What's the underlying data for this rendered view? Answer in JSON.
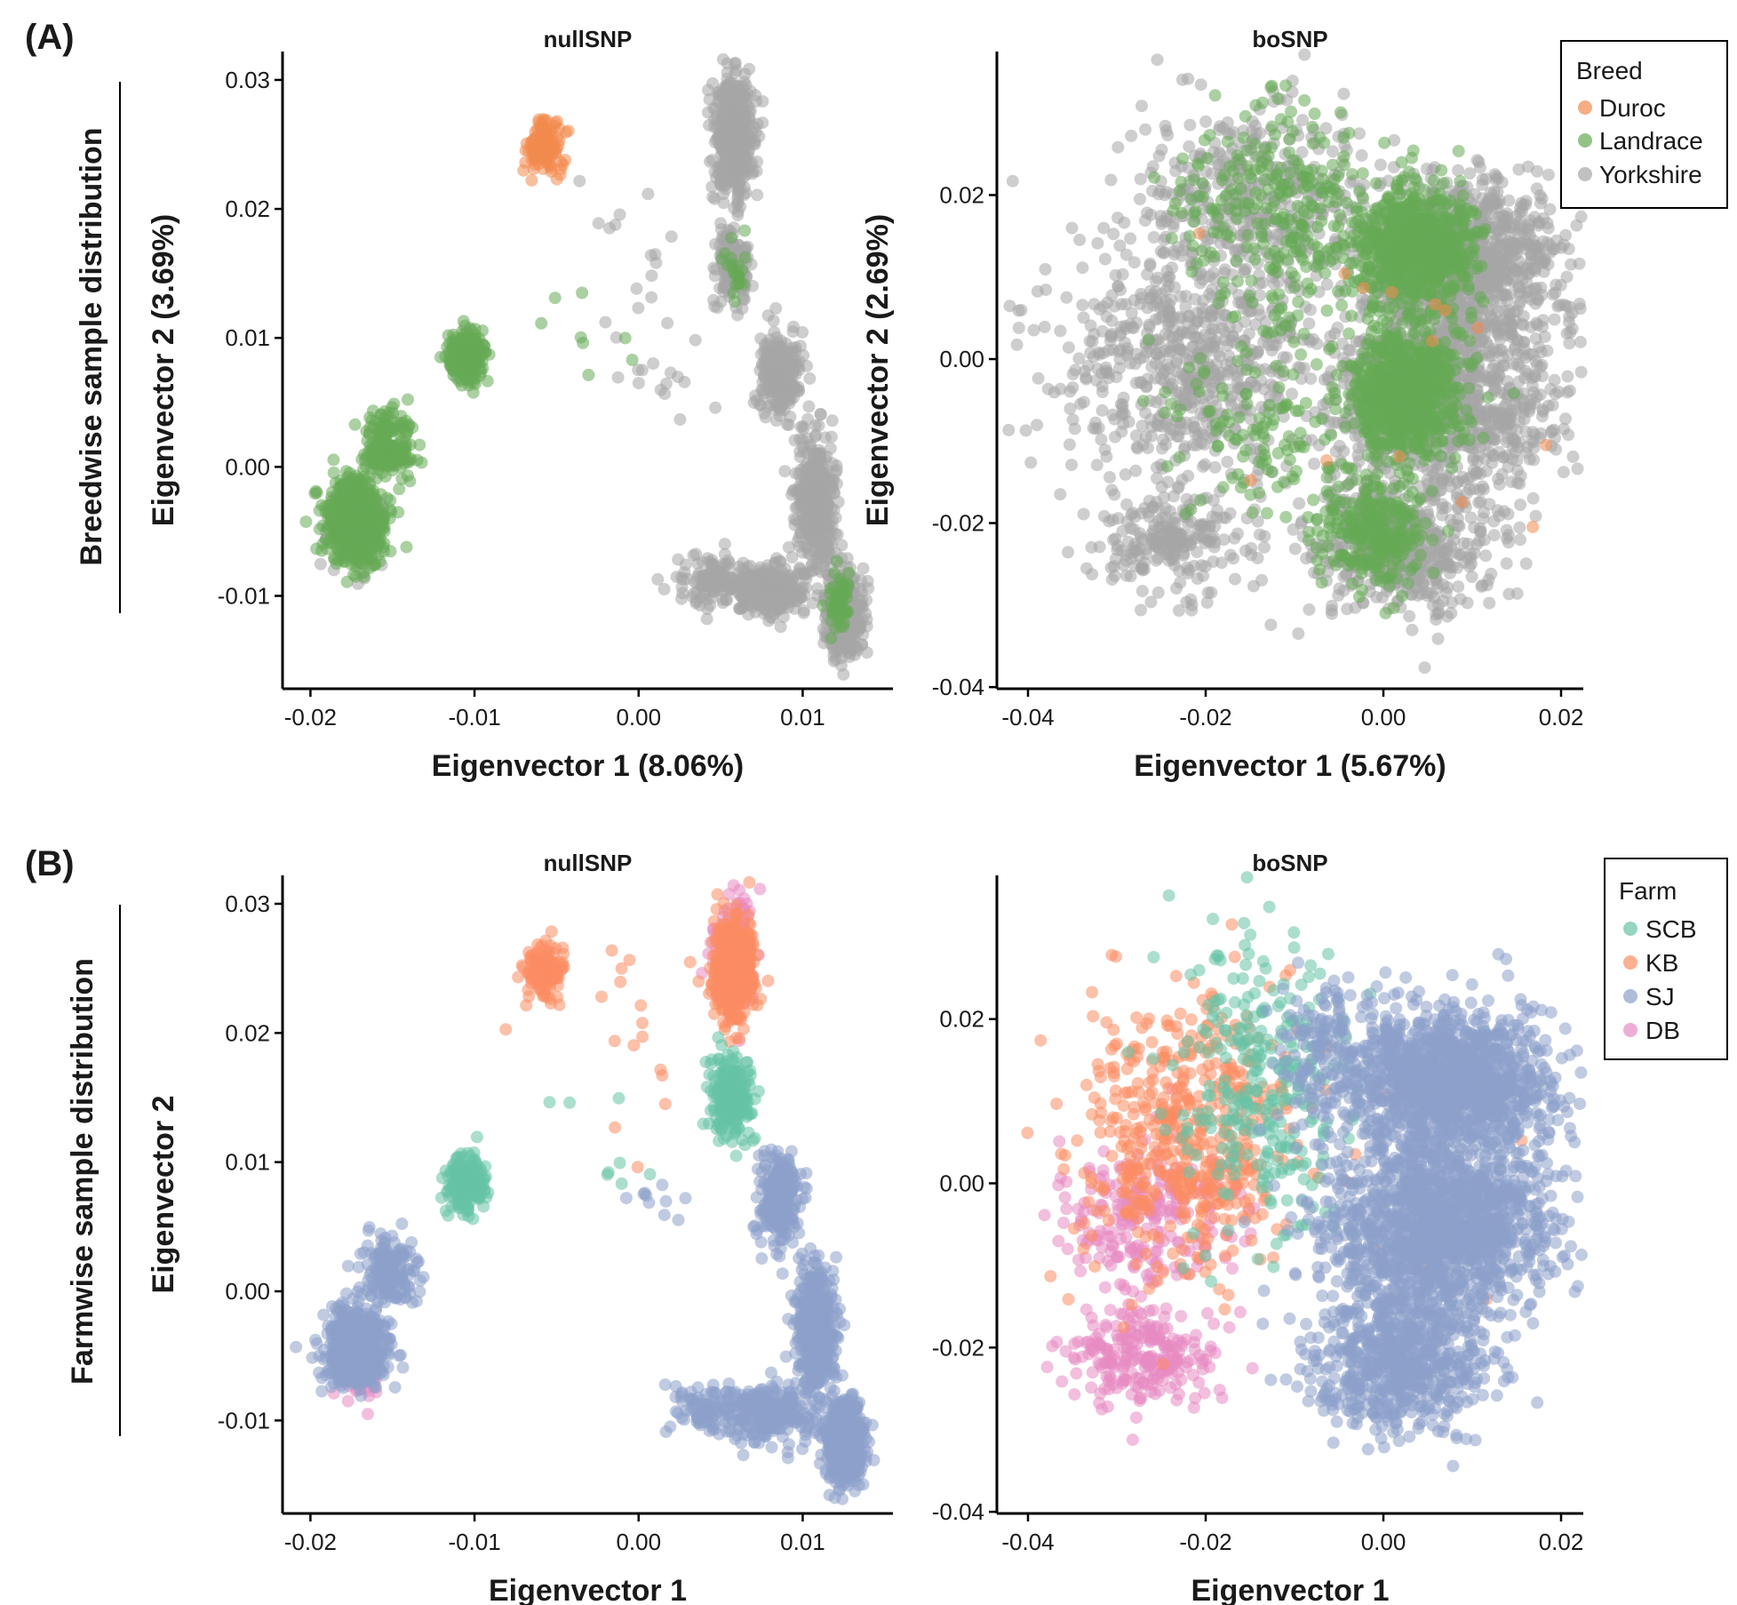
{
  "figure": {
    "panels": [
      {
        "letter": "(A)",
        "row_label": "Breedwise sample distribution"
      },
      {
        "letter": "(B)",
        "row_label": "Farmwise sample distribution"
      }
    ]
  },
  "legends": {
    "breed": {
      "title": "Breed",
      "items": [
        {
          "label": "Duroc",
          "color": "#F28A4E"
        },
        {
          "label": "Landrace",
          "color": "#66AA55"
        },
        {
          "label": "Yorkshire",
          "color": "#A6A6A6"
        }
      ]
    },
    "farm": {
      "title": "Farm",
      "items": [
        {
          "label": "SCB",
          "color": "#66C2A5"
        },
        {
          "label": "KB",
          "color": "#FC8D62"
        },
        {
          "label": "SJ",
          "color": "#8DA0CB"
        },
        {
          "label": "DB",
          "color": "#E78AC3"
        }
      ]
    }
  },
  "chart_data": [
    {
      "type": "scatter",
      "panel": "A",
      "title": "nullSNP",
      "xlabel": "Eigenvector 1 (8.06%)",
      "ylabel": "Eigenvector 2 (3.69%)",
      "xlim": [
        -0.0217,
        0.0155
      ],
      "ylim": [
        -0.0172,
        0.0322
      ],
      "xticks": [
        -0.02,
        -0.01,
        0.0,
        0.01
      ],
      "xtick_labels": [
        "-0.02",
        "-0.01",
        "0.00",
        "0.01"
      ],
      "yticks": [
        -0.01,
        0.0,
        0.01,
        0.02,
        0.03
      ],
      "ytick_labels": [
        "-0.01",
        "0.00",
        "0.01",
        "0.02",
        "0.03"
      ],
      "legend": "breed",
      "clusters": [
        {
          "group": "Yorkshire",
          "x": 0.0058,
          "y": 0.0255,
          "sx": 0.0006,
          "sy": 0.0022,
          "n": 520
        },
        {
          "group": "Yorkshire",
          "x": 0.0057,
          "y": 0.0155,
          "sx": 0.0005,
          "sy": 0.0013,
          "n": 200
        },
        {
          "group": "Yorkshire",
          "x": 0.0085,
          "y": 0.007,
          "sx": 0.0006,
          "sy": 0.0017,
          "n": 260
        },
        {
          "group": "Yorkshire",
          "x": 0.0108,
          "y": -0.003,
          "sx": 0.0006,
          "sy": 0.0025,
          "n": 420
        },
        {
          "group": "Yorkshire",
          "x": 0.0125,
          "y": -0.0115,
          "sx": 0.0006,
          "sy": 0.0016,
          "n": 420
        },
        {
          "group": "Yorkshire",
          "x": 0.008,
          "y": -0.0095,
          "sx": 0.0013,
          "sy": 0.0011,
          "n": 260
        },
        {
          "group": "Yorkshire",
          "x": 0.0045,
          "y": -0.009,
          "sx": 0.0011,
          "sy": 0.0009,
          "n": 100
        },
        {
          "group": "Yorkshire",
          "x": -0.0172,
          "y": -0.0048,
          "sx": 0.0008,
          "sy": 0.0014,
          "n": 140
        },
        {
          "group": "Yorkshire",
          "x": 0.0005,
          "y": 0.014,
          "sx": 0.0025,
          "sy": 0.0045,
          "n": 22
        },
        {
          "group": "Yorkshire",
          "x": 0.0015,
          "y": 0.007,
          "sx": 0.0012,
          "sy": 0.0008,
          "n": 10
        },
        {
          "group": "Duroc",
          "x": -0.0058,
          "y": 0.0248,
          "sx": 0.00055,
          "sy": 0.0011,
          "n": 130
        },
        {
          "group": "Landrace",
          "x": -0.0172,
          "y": -0.0043,
          "sx": 0.0009,
          "sy": 0.0015,
          "n": 620
        },
        {
          "group": "Landrace",
          "x": -0.0152,
          "y": 0.0015,
          "sx": 0.0008,
          "sy": 0.0015,
          "n": 180
        },
        {
          "group": "Landrace",
          "x": -0.0105,
          "y": 0.0085,
          "sx": 0.0006,
          "sy": 0.0011,
          "n": 190
        },
        {
          "group": "Landrace",
          "x": 0.0122,
          "y": -0.0105,
          "sx": 0.0004,
          "sy": 0.0013,
          "n": 60
        },
        {
          "group": "Landrace",
          "x": 0.0058,
          "y": 0.0152,
          "sx": 0.0004,
          "sy": 0.001,
          "n": 25
        },
        {
          "group": "Landrace",
          "x": -0.002,
          "y": 0.011,
          "sx": 0.002,
          "sy": 0.0025,
          "n": 8
        }
      ]
    },
    {
      "type": "scatter",
      "panel": "A",
      "title": "boSNP",
      "xlabel": "Eigenvector 1 (5.67%)",
      "ylabel": "Eigenvector 2 (2.69%)",
      "xlim": [
        -0.0435,
        0.0225
      ],
      "ylim": [
        -0.0402,
        0.0375
      ],
      "xticks": [
        -0.04,
        -0.02,
        0.0,
        0.02
      ],
      "xtick_labels": [
        "-0.04",
        "-0.02",
        "0.00",
        "0.02"
      ],
      "yticks": [
        -0.04,
        -0.02,
        0.0,
        0.02
      ],
      "ytick_labels": [
        "-0.04",
        "-0.02",
        "0.00",
        "0.02"
      ],
      "legend": "breed",
      "clusters": [
        {
          "group": "Yorkshire",
          "x": 0.0095,
          "y": 0.012,
          "sx": 0.0055,
          "sy": 0.005,
          "n": 900
        },
        {
          "group": "Yorkshire",
          "x": 0.007,
          "y": -0.005,
          "sx": 0.0065,
          "sy": 0.006,
          "n": 1000
        },
        {
          "group": "Yorkshire",
          "x": 0.002,
          "y": -0.023,
          "sx": 0.005,
          "sy": 0.004,
          "n": 520
        },
        {
          "group": "Yorkshire",
          "x": -0.024,
          "y": -0.022,
          "sx": 0.004,
          "sy": 0.003,
          "n": 220
        },
        {
          "group": "Yorkshire",
          "x": -0.022,
          "y": 0.0,
          "sx": 0.007,
          "sy": 0.008,
          "n": 650
        },
        {
          "group": "Yorkshire",
          "x": -0.015,
          "y": 0.02,
          "sx": 0.007,
          "sy": 0.006,
          "n": 380
        },
        {
          "group": "Landrace",
          "x": 0.0035,
          "y": 0.0135,
          "sx": 0.0035,
          "sy": 0.0035,
          "n": 750
        },
        {
          "group": "Landrace",
          "x": 0.0025,
          "y": -0.004,
          "sx": 0.003,
          "sy": 0.0038,
          "n": 800
        },
        {
          "group": "Landrace",
          "x": -0.001,
          "y": -0.021,
          "sx": 0.0032,
          "sy": 0.0035,
          "n": 280
        },
        {
          "group": "Landrace",
          "x": -0.012,
          "y": 0.018,
          "sx": 0.0055,
          "sy": 0.0065,
          "n": 260
        },
        {
          "group": "Landrace",
          "x": -0.013,
          "y": -0.008,
          "sx": 0.006,
          "sy": 0.0065,
          "n": 130
        },
        {
          "group": "Duroc",
          "x": 0.0,
          "y": 0.0,
          "sx": 0.01,
          "sy": 0.012,
          "n": 14
        }
      ]
    },
    {
      "type": "scatter",
      "panel": "B",
      "title": "nullSNP",
      "xlabel": "Eigenvector 1",
      "ylabel": "Eigenvector 2",
      "xlim": [
        -0.0217,
        0.0155
      ],
      "ylim": [
        -0.0172,
        0.0322
      ],
      "xticks": [
        -0.02,
        -0.01,
        0.0,
        0.01
      ],
      "xtick_labels": [
        "-0.02",
        "-0.01",
        "0.00",
        "0.01"
      ],
      "yticks": [
        -0.01,
        0.0,
        0.01,
        0.02,
        0.03
      ],
      "ytick_labels": [
        "-0.01",
        "0.00",
        "0.01",
        "0.02",
        "0.03"
      ],
      "legend": "farm",
      "clusters": [
        {
          "group": "DB",
          "x": 0.0058,
          "y": 0.026,
          "sx": 0.0006,
          "sy": 0.002,
          "n": 200
        },
        {
          "group": "DB",
          "x": -0.0172,
          "y": -0.0065,
          "sx": 0.0008,
          "sy": 0.0008,
          "n": 50
        },
        {
          "group": "KB",
          "x": 0.0058,
          "y": 0.025,
          "sx": 0.0006,
          "sy": 0.0021,
          "n": 420
        },
        {
          "group": "KB",
          "x": -0.0058,
          "y": 0.0248,
          "sx": 0.00055,
          "sy": 0.0011,
          "n": 130
        },
        {
          "group": "KB",
          "x": -0.0005,
          "y": 0.02,
          "sx": 0.0025,
          "sy": 0.004,
          "n": 18
        },
        {
          "group": "SCB",
          "x": 0.0057,
          "y": 0.015,
          "sx": 0.0006,
          "sy": 0.0015,
          "n": 260
        },
        {
          "group": "SCB",
          "x": -0.0105,
          "y": 0.0085,
          "sx": 0.0006,
          "sy": 0.0011,
          "n": 190
        },
        {
          "group": "SCB",
          "x": -0.002,
          "y": 0.011,
          "sx": 0.002,
          "sy": 0.0025,
          "n": 8
        },
        {
          "group": "SJ",
          "x": 0.0085,
          "y": 0.007,
          "sx": 0.0006,
          "sy": 0.0017,
          "n": 260
        },
        {
          "group": "SJ",
          "x": 0.0108,
          "y": -0.003,
          "sx": 0.0006,
          "sy": 0.0025,
          "n": 420
        },
        {
          "group": "SJ",
          "x": 0.0125,
          "y": -0.0115,
          "sx": 0.0006,
          "sy": 0.0016,
          "n": 470
        },
        {
          "group": "SJ",
          "x": 0.008,
          "y": -0.0095,
          "sx": 0.0013,
          "sy": 0.0011,
          "n": 260
        },
        {
          "group": "SJ",
          "x": 0.0045,
          "y": -0.009,
          "sx": 0.0011,
          "sy": 0.0009,
          "n": 100
        },
        {
          "group": "SJ",
          "x": -0.0172,
          "y": -0.0043,
          "sx": 0.0009,
          "sy": 0.0015,
          "n": 620
        },
        {
          "group": "SJ",
          "x": -0.0152,
          "y": 0.0015,
          "sx": 0.0008,
          "sy": 0.0015,
          "n": 180
        },
        {
          "group": "SJ",
          "x": 0.0015,
          "y": 0.007,
          "sx": 0.0012,
          "sy": 0.0008,
          "n": 10
        }
      ]
    },
    {
      "type": "scatter",
      "panel": "B",
      "title": "boSNP",
      "xlabel": "Eigenvector 1",
      "ylabel": "",
      "xlim": [
        -0.0435,
        0.0225
      ],
      "ylim": [
        -0.0402,
        0.0375
      ],
      "xticks": [
        -0.04,
        -0.02,
        0.0,
        0.02
      ],
      "xtick_labels": [
        "-0.04",
        "-0.02",
        "0.00",
        "0.02"
      ],
      "yticks": [
        -0.04,
        -0.02,
        0.0,
        0.02
      ],
      "ytick_labels": [
        "-0.04",
        "-0.02",
        "0.00",
        "0.02"
      ],
      "legend": "farm",
      "clusters": [
        {
          "group": "DB",
          "x": -0.027,
          "y": -0.021,
          "sx": 0.0045,
          "sy": 0.003,
          "n": 240
        },
        {
          "group": "DB",
          "x": -0.027,
          "y": -0.004,
          "sx": 0.005,
          "sy": 0.005,
          "n": 230
        },
        {
          "group": "KB",
          "x": -0.022,
          "y": 0.006,
          "sx": 0.006,
          "sy": 0.008,
          "n": 520
        },
        {
          "group": "KB",
          "x": 0.0,
          "y": 0.0,
          "sx": 0.008,
          "sy": 0.01,
          "n": 16
        },
        {
          "group": "SCB",
          "x": -0.013,
          "y": 0.012,
          "sx": 0.005,
          "sy": 0.009,
          "n": 300
        },
        {
          "group": "SJ",
          "x": 0.0075,
          "y": 0.0125,
          "sx": 0.0055,
          "sy": 0.0045,
          "n": 1300
        },
        {
          "group": "SJ",
          "x": 0.0065,
          "y": -0.005,
          "sx": 0.0065,
          "sy": 0.0055,
          "n": 1500
        },
        {
          "group": "SJ",
          "x": 0.002,
          "y": -0.022,
          "sx": 0.005,
          "sy": 0.004,
          "n": 650
        },
        {
          "group": "SJ",
          "x": -0.006,
          "y": 0.016,
          "sx": 0.003,
          "sy": 0.004,
          "n": 160
        }
      ]
    }
  ]
}
